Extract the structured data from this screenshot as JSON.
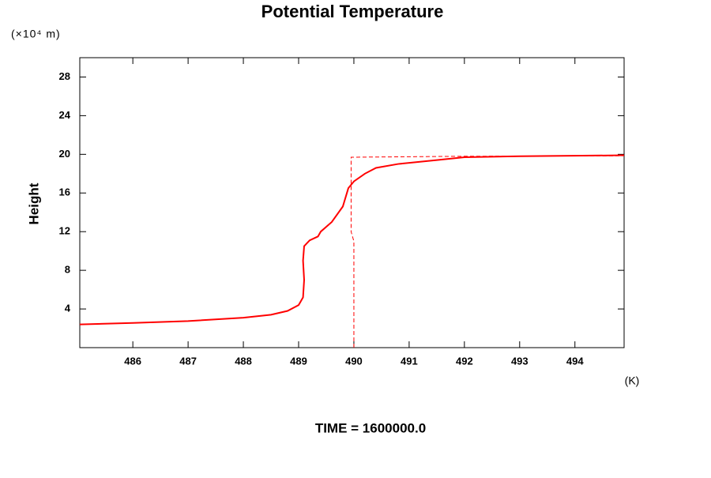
{
  "chart_data": {
    "type": "line",
    "title": "Potential Temperature",
    "y_label": "Height",
    "y_unit": "(×10⁴ m)",
    "x_unit": "(K)",
    "footer": "TIME = 1600000.0",
    "xlim": [
      485.04,
      494.89
    ],
    "ylim": [
      0,
      30
    ],
    "xticks": [
      486,
      487,
      488,
      489,
      490,
      491,
      492,
      493,
      494
    ],
    "yticks": [
      4,
      8,
      12,
      16,
      20,
      24,
      28
    ],
    "series": [
      {
        "color": "#ff0000",
        "dashed": false,
        "x": [
          485.04,
          486,
          487,
          488,
          488.5,
          488.8,
          489.0,
          489.08,
          489.1,
          489.08,
          489.1,
          489.2,
          489.35,
          489.4,
          489.6,
          489.8,
          489.9,
          490.0,
          490.2,
          490.4,
          490.8,
          491.5,
          492.0,
          493.0,
          494.89
        ],
        "values": [
          2.4,
          2.55,
          2.75,
          3.1,
          3.4,
          3.8,
          4.4,
          5.2,
          7.0,
          9.0,
          10.5,
          11.1,
          11.5,
          12.0,
          13.0,
          14.6,
          16.5,
          17.2,
          18.0,
          18.6,
          19.0,
          19.4,
          19.7,
          19.8,
          19.9
        ]
      },
      {
        "color": "#ff0000",
        "dashed": true,
        "x": [
          490.0,
          490.0,
          489.95,
          489.95,
          492.0,
          494.89
        ],
        "values": [
          0,
          11.0,
          12.0,
          19.7,
          19.8,
          19.85
        ]
      }
    ]
  }
}
